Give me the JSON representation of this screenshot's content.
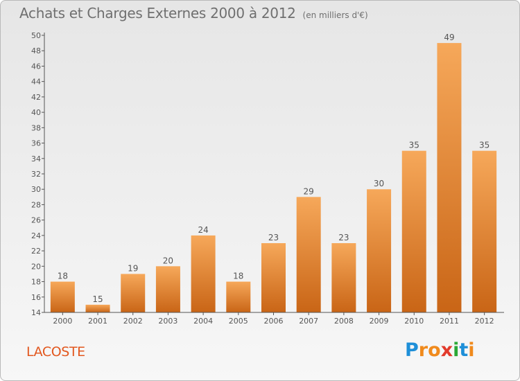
{
  "header": {
    "title": "Achats et Charges Externes 2000 à 2012",
    "unit": "(en milliers d'€)"
  },
  "commune": "LACOSTE",
  "logo": {
    "text": "Proxiti",
    "letter_colors": [
      "#1e8fd8",
      "#f08a1c",
      "#f08a1c",
      "#e23b2c",
      "#2aa836",
      "#1e8fd8",
      "#f08a1c"
    ]
  },
  "colors": {
    "bar_light": "#f6a85a",
    "bar_dark": "#c96516",
    "axis": "#555555",
    "text": "#555555"
  },
  "chart_data": {
    "type": "bar",
    "title": "Achats et Charges Externes 2000 à 2012",
    "subtitle": "(en milliers d'€)",
    "xlabel": "",
    "ylabel": "",
    "categories": [
      "2000",
      "2001",
      "2002",
      "2003",
      "2004",
      "2005",
      "2006",
      "2007",
      "2008",
      "2009",
      "2010",
      "2011",
      "2012"
    ],
    "values": [
      18,
      15,
      19,
      20,
      24,
      18,
      23,
      29,
      23,
      30,
      35,
      49,
      35
    ],
    "ylim": [
      14,
      50
    ],
    "yticks": [
      14,
      16,
      18,
      20,
      22,
      24,
      26,
      28,
      30,
      32,
      34,
      36,
      38,
      40,
      42,
      44,
      46,
      48,
      50
    ],
    "grid": false,
    "data_labels": true
  }
}
